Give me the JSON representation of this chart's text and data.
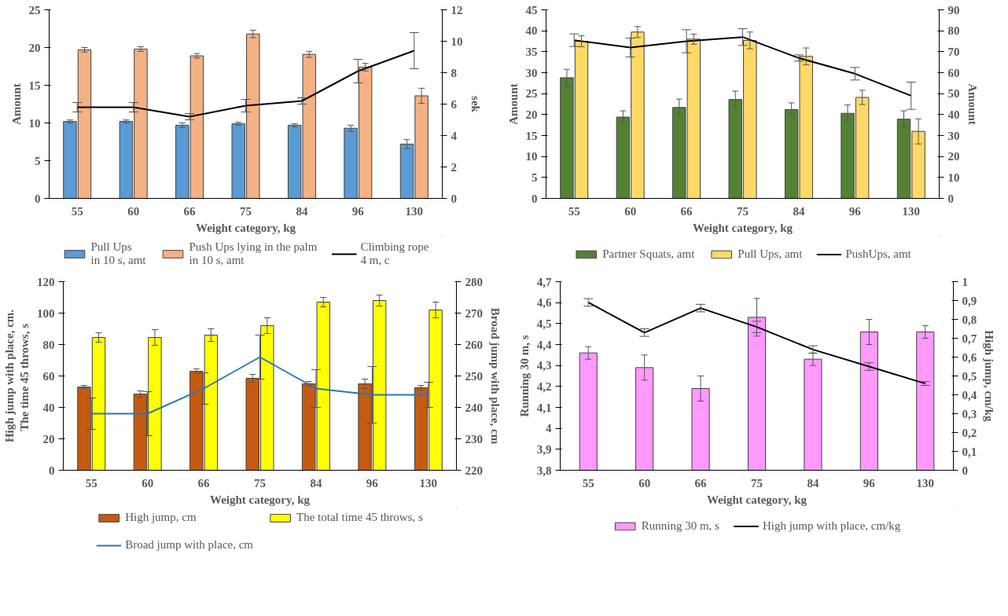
{
  "chart_data": [
    {
      "type": "bar",
      "xlabel": "Weight category, kg",
      "ylabel": "Amount",
      "y2label": "sek",
      "categories": [
        "55",
        "60",
        "66",
        "75",
        "84",
        "96",
        "130"
      ],
      "ylim": [
        0,
        25
      ],
      "yticks": [
        0,
        5,
        10,
        15,
        20,
        25
      ],
      "y2lim": [
        0,
        12
      ],
      "y2ticks": [
        0,
        2,
        4,
        6,
        8,
        10,
        12
      ],
      "grid": false,
      "legend": "bottom",
      "series": [
        {
          "name": "Pull Ups\nin 10 s, amt",
          "color": "#5b9bd5",
          "values": [
            10.2,
            10.2,
            9.7,
            9.9,
            9.7,
            9.3,
            7.2
          ],
          "errors": [
            0.2,
            0.2,
            0.3,
            0.2,
            0.2,
            0.4,
            0.6
          ]
        },
        {
          "name": "Push Ups lying in the palm\nin 10 s, amt",
          "color": "#f4b183",
          "values": [
            19.7,
            19.8,
            18.9,
            21.8,
            19.1,
            17.4,
            13.6
          ],
          "errors": [
            0.3,
            0.3,
            0.3,
            0.5,
            0.4,
            0.5,
            1.0
          ]
        },
        {
          "name": "Climbing rope\n4 m, c",
          "type": "line",
          "axis": "y2",
          "color": "#000000",
          "values": [
            5.8,
            5.8,
            5.2,
            5.9,
            6.2,
            8.1,
            9.4
          ],
          "errors": [
            0.3,
            0.3,
            0.2,
            0.4,
            0.2,
            0.75,
            1.15
          ]
        }
      ]
    },
    {
      "type": "bar",
      "xlabel": "Weight category, kg",
      "ylabel": "Amount",
      "y2label": "Amount",
      "categories": [
        "55",
        "60",
        "66",
        "75",
        "84",
        "96",
        "130"
      ],
      "ylim": [
        0,
        45
      ],
      "yticks": [
        0,
        5,
        10,
        15,
        20,
        25,
        30,
        35,
        40,
        45
      ],
      "y2lim": [
        0,
        90
      ],
      "y2ticks": [
        0,
        10,
        20,
        30,
        40,
        50,
        60,
        70,
        80,
        90
      ],
      "grid": false,
      "legend": "bottom",
      "series": [
        {
          "name": "Partner Squats, amt",
          "color": "#548235",
          "values": [
            28.8,
            19.4,
            21.7,
            23.6,
            21.2,
            20.3,
            18.9
          ],
          "errors": [
            2,
            1.5,
            2,
            2,
            1.6,
            2,
            2
          ]
        },
        {
          "name": "Pull Ups, amt",
          "color": "#ffd966",
          "values": [
            37.5,
            39.7,
            38,
            37.7,
            33.9,
            24.1,
            16
          ],
          "errors": [
            1.3,
            1.3,
            1.2,
            2,
            2,
            1.7,
            3
          ]
        },
        {
          "name": "PushUps, amt",
          "type": "line",
          "axis": "y2",
          "color": "#000000",
          "values": [
            75.5,
            72,
            75,
            77,
            67,
            59.5,
            49
          ],
          "errors": [
            3,
            4.5,
            5.5,
            4,
            1.5,
            3,
            6.5
          ]
        }
      ]
    },
    {
      "type": "bar",
      "xlabel": "Weight category, kg",
      "ylabel": "High jump with place, cm.\nThe  time 45 throws, s",
      "y2label": "Broad jump with place, cm",
      "categories": [
        "55",
        "60",
        "66",
        "75",
        "84",
        "96",
        "130"
      ],
      "ylim": [
        0,
        120
      ],
      "yticks": [
        0,
        20,
        40,
        60,
        80,
        100,
        120
      ],
      "y2lim": [
        220,
        280
      ],
      "y2ticks": [
        220,
        230,
        240,
        250,
        260,
        270,
        280
      ],
      "grid": false,
      "legend": "bottom",
      "series": [
        {
          "name": "High jump, cm",
          "color": "#c55a11",
          "values": [
            53,
            48.5,
            63,
            58.5,
            55,
            55,
            52.5
          ],
          "errors": [
            1,
            2,
            1.5,
            2.5,
            1.5,
            3,
            1.5
          ]
        },
        {
          "name": "The total time 45 throws, s",
          "color": "#ffff00",
          "values": [
            84.5,
            84.5,
            86,
            92,
            107,
            108,
            102
          ],
          "errors": [
            3,
            5,
            4,
            5,
            3,
            3.5,
            5
          ]
        },
        {
          "name": "Broad jump with place, cm",
          "type": "line",
          "axis": "y2",
          "color": "#2e75b6",
          "values": [
            238,
            238,
            246,
            256,
            246,
            244,
            244
          ],
          "errors": [
            5,
            7,
            5,
            7,
            6,
            9,
            4
          ]
        }
      ]
    },
    {
      "type": "bar",
      "xlabel": "Weight category, kg",
      "ylabel": "Running 30 m, s",
      "y2label": "High jump, cm/kg",
      "categories": [
        "55",
        "60",
        "66",
        "75",
        "84",
        "96",
        "130"
      ],
      "ylim": [
        3.8,
        4.7
      ],
      "yticks": [
        {
          "value": 3.8,
          "label": "3,8"
        },
        {
          "value": 3.9,
          "label": "3,9"
        },
        4,
        {
          "value": 4.1,
          "label": "4,1"
        },
        {
          "value": 4.2,
          "label": "4,2"
        },
        {
          "value": 4.3,
          "label": "4,3"
        },
        {
          "value": 4.4,
          "label": "4,4"
        },
        {
          "value": 4.5,
          "label": "4,5"
        },
        {
          "value": 4.6,
          "label": "4,6"
        },
        {
          "value": 4.7,
          "label": "4,7"
        }
      ],
      "y2lim": [
        0,
        1
      ],
      "y2ticks": [
        0,
        {
          "value": 0.1,
          "label": "0,1"
        },
        {
          "value": 0.2,
          "label": "0,2"
        },
        {
          "value": 0.3,
          "label": "0,3"
        },
        {
          "value": 0.4,
          "label": "0,4"
        },
        {
          "value": 0.5,
          "label": "0,5"
        },
        {
          "value": 0.6,
          "label": "0,6"
        },
        {
          "value": 0.7,
          "label": "0,7"
        },
        {
          "value": 0.8,
          "label": "0,8"
        },
        {
          "value": 0.9,
          "label": "0,9"
        },
        1
      ],
      "grid": false,
      "legend": "bottom",
      "series": [
        {
          "name": "Running 30 m, s",
          "color": "#ff99ff",
          "values": [
            4.36,
            4.29,
            4.19,
            4.53,
            4.33,
            4.46,
            4.46
          ],
          "errors": [
            0.03,
            0.06,
            0.06,
            0.09,
            0.03,
            0.06,
            0.03
          ]
        },
        {
          "name": "High jump with place, cm/kg",
          "type": "line",
          "axis": "y2",
          "color": "#000000",
          "values": [
            0.89,
            0.73,
            0.86,
            0.76,
            0.64,
            0.55,
            0.46
          ],
          "errors": [
            0.02,
            0.02,
            0.02,
            0.03,
            0.02,
            0.02,
            0.01
          ]
        }
      ]
    }
  ]
}
